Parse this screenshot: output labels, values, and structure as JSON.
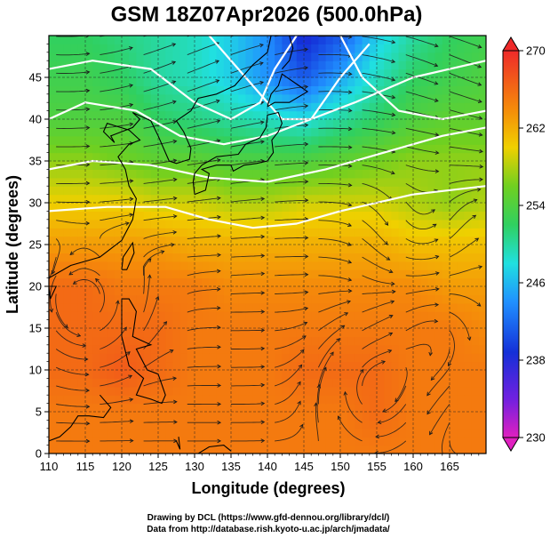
{
  "chart_data": {
    "type": "heatmap",
    "title": "GSM 18Z07Apr2026 (500.0hPa)",
    "xlabel": "Longitude (degrees)",
    "ylabel": "Latitude  (degrees)",
    "xlim": [
      110,
      170
    ],
    "ylim": [
      0,
      50
    ],
    "x_ticks": [
      "110",
      "115",
      "120",
      "125",
      "130",
      "135",
      "140",
      "145",
      "150",
      "155",
      "160",
      "165"
    ],
    "y_ticks": [
      "0",
      "5",
      "10",
      "15",
      "20",
      "25",
      "30",
      "35",
      "40",
      "45"
    ],
    "grid": true,
    "colorbar": {
      "position": "right",
      "range": [
        230,
        270
      ],
      "ticks": [
        "230",
        "238",
        "246",
        "254",
        "262",
        "270"
      ]
    },
    "overlays": [
      "temperature shading",
      "wind streamlines",
      "white contours",
      "coastlines"
    ],
    "temperature_field": [
      {
        "lat": 50,
        "values": [
          252,
          252,
          251,
          250,
          249,
          247,
          244,
          238,
          241,
          247,
          250,
          252,
          253
        ]
      },
      {
        "lat": 45,
        "values": [
          253,
          253,
          252,
          250,
          249,
          247,
          244,
          241,
          245,
          249,
          252,
          253,
          254
        ]
      },
      {
        "lat": 40,
        "values": [
          254,
          254,
          254,
          252,
          251,
          250,
          249,
          248,
          250,
          252,
          254,
          255,
          255
        ]
      },
      {
        "lat": 35,
        "values": [
          257,
          257,
          256,
          255,
          255,
          254,
          254,
          254,
          255,
          256,
          257,
          257,
          257
        ]
      },
      {
        "lat": 30,
        "values": [
          260,
          260,
          260,
          259,
          259,
          258,
          258,
          259,
          259,
          259,
          258,
          257,
          258
        ]
      },
      {
        "lat": 25,
        "values": [
          263,
          263,
          263,
          263,
          262,
          262,
          262,
          262,
          262,
          262,
          261,
          261,
          261
        ]
      },
      {
        "lat": 20,
        "values": [
          266,
          266,
          265,
          265,
          265,
          264,
          264,
          264,
          264,
          264,
          264,
          263,
          263
        ]
      },
      {
        "lat": 15,
        "values": [
          266,
          266,
          266,
          266,
          265,
          265,
          265,
          265,
          265,
          265,
          265,
          265,
          264
        ]
      },
      {
        "lat": 10,
        "values": [
          266,
          266,
          267,
          266,
          265,
          265,
          265,
          266,
          266,
          266,
          265,
          265,
          265
        ]
      },
      {
        "lat": 5,
        "values": [
          265,
          265,
          265,
          265,
          265,
          265,
          265,
          265,
          265,
          266,
          265,
          265,
          265
        ]
      },
      {
        "lat": 0,
        "values": [
          265,
          265,
          265,
          265,
          265,
          265,
          265,
          265,
          265,
          265,
          265,
          265,
          265
        ]
      }
    ]
  },
  "credits": {
    "line1": "Drawing by DCL (https://www.gfd-dennou.org/library/dcl/)",
    "line2": "Data from http://database.rish.kyoto-u.ac.jp/arch/jmadata/"
  },
  "colors": {
    "contour": "#ffffff",
    "streamline": "#1a1a1a",
    "coastline": "#000000",
    "grid": "#222222"
  }
}
